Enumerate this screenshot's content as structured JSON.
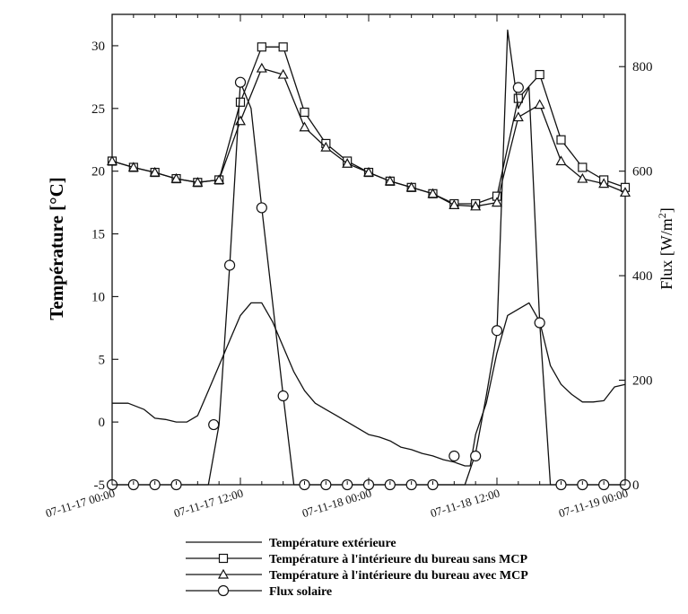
{
  "chart_data": {
    "type": "line",
    "title": "",
    "xlabel": "",
    "ylabel_left": "Température [°C]",
    "ylabel_right_base": "Flux [W/m",
    "ylabel_right_sup": "2",
    "ylabel_right_end": "]",
    "x_unit": "hours since 07-11-17 00:00",
    "xlim": [
      0,
      48
    ],
    "ylim_left": [
      -5,
      32.5
    ],
    "ylim_right": [
      0,
      900
    ],
    "x_ticks": [
      {
        "value": 0,
        "label": "07-11-17 00:00"
      },
      {
        "value": 12,
        "label": "07-11-17 12:00"
      },
      {
        "value": 24,
        "label": "07-11-18 00:00"
      },
      {
        "value": 36,
        "label": "07-11-18 12:00"
      },
      {
        "value": 48,
        "label": "07-11-19 00:00"
      }
    ],
    "y_left_ticks": [
      -5,
      0,
      5,
      10,
      15,
      20,
      25,
      30
    ],
    "y_right_ticks": [
      0,
      200,
      400,
      600,
      800
    ],
    "grid": false,
    "legend_position": "bottom",
    "series": [
      {
        "name": "Température extérieure",
        "axis": "left",
        "marker": "none",
        "x": [
          0,
          1.5,
          3,
          4,
          5,
          6,
          7,
          8,
          9,
          10,
          11,
          12,
          13,
          14,
          15,
          16,
          17,
          18,
          19,
          20,
          21,
          22,
          23,
          24,
          25,
          26,
          27,
          28,
          29,
          30,
          31,
          32,
          33,
          33.5,
          34,
          35,
          36,
          37,
          38,
          39,
          40,
          41,
          42,
          43,
          44,
          45,
          46,
          47,
          48
        ],
        "y": [
          1.5,
          1.5,
          1.0,
          0.3,
          0.2,
          0.0,
          0.0,
          0.5,
          2.5,
          4.5,
          6.5,
          8.5,
          9.5,
          9.5,
          8.0,
          6.0,
          4.0,
          2.5,
          1.5,
          1.0,
          0.5,
          0.0,
          -0.5,
          -1.0,
          -1.2,
          -1.5,
          -2.0,
          -2.2,
          -2.5,
          -2.7,
          -3.0,
          -3.2,
          -3.5,
          -3.5,
          -1.0,
          1.5,
          5.5,
          8.5,
          9.0,
          9.5,
          8.0,
          4.5,
          3.0,
          2.2,
          1.6,
          1.6,
          1.7,
          2.8,
          3.0
        ]
      },
      {
        "name": "Température à l'intérieure du bureau sans MCP",
        "axis": "left",
        "marker": "square",
        "x": [
          0,
          2,
          4,
          6,
          8,
          10,
          12,
          14,
          16,
          18,
          20,
          22,
          24,
          26,
          28,
          30,
          32,
          34,
          36,
          38,
          40,
          42,
          44,
          46,
          48
        ],
        "y": [
          20.8,
          20.3,
          19.9,
          19.4,
          19.1,
          19.3,
          25.5,
          29.9,
          29.9,
          24.7,
          22.2,
          20.8,
          19.9,
          19.2,
          18.7,
          18.2,
          17.4,
          17.4,
          18.0,
          25.8,
          27.7,
          22.5,
          20.3,
          19.3,
          18.7
        ]
      },
      {
        "name": "Température à l'intérieure du bureau avec MCP",
        "axis": "left",
        "marker": "triangle",
        "x": [
          0,
          2,
          4,
          6,
          8,
          10,
          12,
          14,
          16,
          18,
          20,
          22,
          24,
          26,
          28,
          30,
          32,
          34,
          36,
          38,
          40,
          42,
          44,
          46,
          48
        ],
        "y": [
          20.8,
          20.3,
          19.9,
          19.4,
          19.1,
          19.3,
          24.0,
          28.2,
          27.7,
          23.5,
          21.9,
          20.6,
          19.9,
          19.2,
          18.7,
          18.2,
          17.3,
          17.2,
          17.5,
          24.3,
          25.3,
          20.8,
          19.4,
          19.0,
          18.3
        ]
      },
      {
        "name": "Flux solaire",
        "axis": "right",
        "marker": "circle",
        "x": [
          0,
          1,
          2,
          3,
          4,
          5,
          6,
          7,
          8,
          9,
          10,
          11,
          12,
          13,
          14,
          15,
          16,
          17,
          18,
          19,
          20,
          21,
          22,
          23,
          24,
          25,
          26,
          27,
          28,
          29,
          30,
          31,
          32,
          33,
          34,
          35,
          36,
          37,
          38,
          39,
          40,
          41,
          42,
          43,
          44,
          45,
          46,
          47,
          48
        ],
        "y": [
          0,
          0,
          0,
          0,
          0,
          0,
          0,
          0,
          0,
          0,
          115,
          420,
          770,
          720,
          530,
          350,
          170,
          0,
          0,
          0,
          0,
          0,
          0,
          0,
          0,
          0,
          0,
          0,
          0,
          0,
          0,
          0,
          0,
          0,
          60,
          170,
          290,
          870,
          720,
          760,
          310,
          0,
          0,
          0,
          0,
          0,
          0,
          0,
          0
        ],
        "marker_points": [
          {
            "x": 0,
            "y": 0
          },
          {
            "x": 2,
            "y": 0
          },
          {
            "x": 4,
            "y": 0
          },
          {
            "x": 6,
            "y": 0
          },
          {
            "x": 9.5,
            "y": 115
          },
          {
            "x": 11,
            "y": 420
          },
          {
            "x": 12,
            "y": 770
          },
          {
            "x": 14,
            "y": 530
          },
          {
            "x": 16,
            "y": 170
          },
          {
            "x": 18,
            "y": 0
          },
          {
            "x": 20,
            "y": 0
          },
          {
            "x": 22,
            "y": 0
          },
          {
            "x": 24,
            "y": 0
          },
          {
            "x": 26,
            "y": 0
          },
          {
            "x": 28,
            "y": 0
          },
          {
            "x": 30,
            "y": 0
          },
          {
            "x": 32,
            "y": 55
          },
          {
            "x": 34,
            "y": 55
          },
          {
            "x": 36,
            "y": 295
          },
          {
            "x": 38,
            "y": 760
          },
          {
            "x": 40,
            "y": 310
          },
          {
            "x": 42,
            "y": 0
          },
          {
            "x": 44,
            "y": 0
          },
          {
            "x": 46,
            "y": 0
          },
          {
            "x": 48,
            "y": 0
          }
        ]
      }
    ]
  },
  "legend": [
    {
      "label": "Température extérieure",
      "marker": "none"
    },
    {
      "label": "Température à l'intérieure du bureau sans MCP",
      "marker": "square"
    },
    {
      "label": "Température à l'intérieure du bureau avec MCP",
      "marker": "triangle"
    },
    {
      "label": "Flux solaire",
      "marker": "circle"
    }
  ]
}
